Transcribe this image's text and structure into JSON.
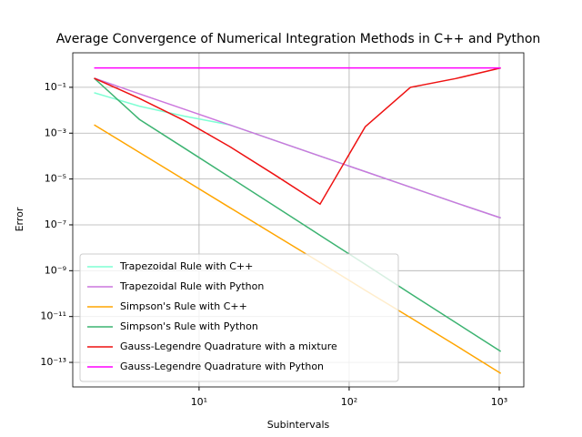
{
  "chart_data": {
    "type": "line",
    "title": "Average Convergence of Numerical Integration Methods in C++ and Python",
    "x_label": "Subintervals",
    "y_label": "Error",
    "log_x": true,
    "log_y": true,
    "grid": true,
    "legend_position": "lower left",
    "x": [
      2,
      4,
      8,
      16,
      32,
      64,
      128,
      256,
      512,
      1024
    ],
    "xlim": [
      1.44,
      1458
    ],
    "ylim": [
      8.5e-15,
      3.2
    ],
    "xticks": [
      {
        "value": 10,
        "label": "10¹"
      },
      {
        "value": 100,
        "label": "10²"
      },
      {
        "value": 1000,
        "label": "10³"
      }
    ],
    "yticks": [
      {
        "value": 1e-13,
        "label": "10⁻¹³"
      },
      {
        "value": 1e-11,
        "label": "10⁻¹¹"
      },
      {
        "value": 1e-09,
        "label": "10⁻⁹"
      },
      {
        "value": 1e-07,
        "label": "10⁻⁷"
      },
      {
        "value": 1e-05,
        "label": "10⁻⁵"
      },
      {
        "value": 0.001,
        "label": "10⁻³"
      },
      {
        "value": 0.1,
        "label": "10⁻¹"
      }
    ],
    "series": [
      {
        "name": "Trapezoidal Rule with C++",
        "color": "#7fffd4",
        "values": [
          0.058,
          0.015,
          0.0055,
          0.0023,
          0.00048,
          0.0001,
          2.1e-05,
          4.4e-06,
          9.2e-07,
          2e-07
        ]
      },
      {
        "name": "Trapezoidal Rule with Python",
        "color": "#cc77dd",
        "values": [
          0.25,
          0.052,
          0.011,
          0.0023,
          0.00048,
          0.0001,
          2.1e-05,
          4.4e-06,
          9.2e-07,
          2e-07
        ]
      },
      {
        "name": "Simpson's Rule with C++",
        "color": "#ffa500",
        "values": [
          0.0023,
          0.000145,
          9.1e-06,
          5.7e-07,
          3.6e-08,
          2.3e-09,
          1.4e-10,
          9e-12,
          5.6e-13,
          3.3e-14
        ]
      },
      {
        "name": "Simpson's Rule with Python",
        "color": "#3cb371",
        "values": [
          0.25,
          0.004,
          0.00022,
          1.2e-05,
          6.5e-07,
          3.5e-08,
          1.9e-09,
          1e-10,
          5.5e-12,
          3e-13
        ]
      },
      {
        "name": "Gauss-Legendre Quadrature with a mixture",
        "color": "#ee1111",
        "values": [
          0.25,
          0.033,
          0.0035,
          0.00026,
          1.5e-05,
          8e-07,
          0.0019,
          0.1,
          0.24,
          0.7
        ]
      },
      {
        "name": "Gauss-Legendre Quadrature with Python",
        "color": "#ff00ff",
        "values": [
          0.7,
          0.7,
          0.7,
          0.7,
          0.7,
          0.7,
          0.7,
          0.7,
          0.7,
          0.7
        ]
      }
    ]
  }
}
